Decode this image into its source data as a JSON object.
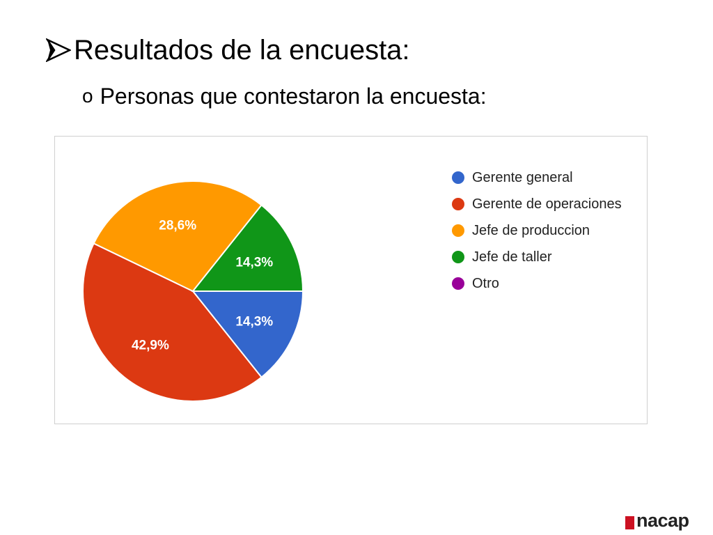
{
  "slide": {
    "heading": "Resultados de la encuesta:",
    "subheading": "Personas que contestaron la encuesta:",
    "sub_bullet": "o",
    "logo": "nacap"
  },
  "chart_data": {
    "type": "pie",
    "title": "",
    "legend_position": "right",
    "categories": [
      "Gerente general",
      "Gerente de operaciones",
      "Jefe de produccion",
      "Jefe de taller",
      "Otro"
    ],
    "values": [
      14.3,
      42.9,
      28.6,
      14.3,
      0
    ],
    "labels": [
      "14,3%",
      "42,9%",
      "28,6%",
      "14,3%",
      ""
    ],
    "colors": [
      "#3366cc",
      "#dc3912",
      "#ff9900",
      "#109618",
      "#990099"
    ]
  }
}
